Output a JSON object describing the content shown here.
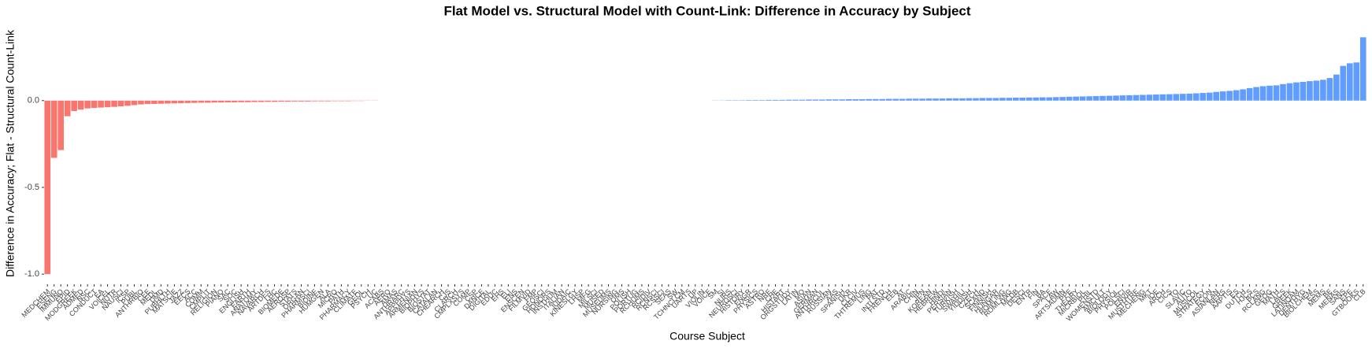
{
  "chart_data": {
    "type": "bar",
    "title": "Flat Model vs. Structural Model with Count-Link: Difference in Accuracy by Subject",
    "x_label": "Course Subject",
    "y_label": "Difference in Accuracy; Flat - Structural Count-Link",
    "negative_color": "#F8766D",
    "positive_color": "#619CFF",
    "ylim": [
      -1.04,
      0.43
    ],
    "yticks": [
      {
        "value": -1.0,
        "label": "-1.0"
      },
      -0.5,
      {
        "value": 0,
        "label": "0.0"
      }
    ],
    "grid": false,
    "categories": [
      "MEDCHEM",
      "ESENG",
      "IMMUNO",
      "EPID",
      "MODGREEK",
      "ADMED",
      "NSC",
      "CONDUCT",
      "EA",
      "VOICEL",
      "NUTR",
      "NAUSCI",
      "ICSP",
      "PUBL",
      "ANTHRBIO",
      "CEE",
      "MEDL",
      "DMD",
      "PUBHLTH",
      "MATSCIE",
      "JAZZ",
      "EECS",
      "ACC",
      "COMM",
      "CMPLIT",
      "RELIGION",
      "PIANO",
      "SAC",
      "SOC",
      "ENGLISH",
      "EARTH",
      "ANATOMY",
      "NAVARCH",
      "ARTDES",
      "LHC",
      "BIOMEDE",
      "AEROSP",
      "STATS",
      "ORGAN",
      "PHARMSCI",
      "BIOINF",
      "HUMGEN",
      "ALA",
      "MICRO",
      "PATH",
      "PHARMACY",
      "CLIMATE",
      "GEOL",
      "PSYCH",
      "UC",
      "ACABS",
      "AERO",
      "AMAS",
      "ANTHRARC",
      "APPPHYS",
      "ARMENIAN",
      "BIOPHYS",
      "BIOSTAT",
      "CATALAN",
      "CHEARCH",
      "CJS",
      "CLARCH",
      "CMPLXSYS",
      "COMP",
      "CSP",
      "DANCE",
      "DIGITAL",
      "EDUC",
      "EHS",
      "ELI",
      "ENS",
      "ENSCEN",
      "FILMVID",
      "FMP",
      "GEOSCI",
      "HONORS",
      "INSTHUM",
      "ITALIAN",
      "JUDAIC",
      "KINESLGY",
      "LHSP",
      "MFG",
      "MILSCI",
      "MUSED",
      "MUSEUMS",
      "NURSING",
      "OMS",
      "POLISH",
      "PORTUG",
      "RCHUMS",
      "RCIDIV",
      "RCNSCI",
      "RCSSCI",
      "SEAS",
      "SW",
      "TCHNCLCM",
      "UARTS",
      "UP",
      "VIOLIN",
      "VOICE",
      "SM",
      "SI",
      "NURS",
      "NEUROSCI",
      "HISTORY",
      "ENGR",
      "PHYSICS",
      "ASTRO",
      "NRE",
      "CHE",
      "HISTART",
      "ORGSTUDY",
      "LATIN",
      "MO",
      "ASIAN",
      "GERMAN",
      "ANTHRCUL",
      "RUSSIAN",
      "AAS",
      "SPANISH",
      "UKR",
      "CLCIV",
      "THTREMUS",
      "LING",
      "PAT",
      "INTLSTD",
      "FRENCH",
      "EEB",
      "AT",
      "ARABIC",
      "CHIN",
      "JPN",
      "KOREAN",
      "HEBREW",
      "HINDI",
      "PERSIAN",
      "TURKISH",
      "SWAHILI",
      "YIDDISH",
      "CZECH",
      "SCAND",
      "FINNISH",
      "HUNGAR",
      "ROMLING",
      "ROMLANG",
      "MCDB",
      "DESCI",
      "ENTR",
      "FIN",
      "BA",
      "SPACE",
      "LAW",
      "ARTSADMN",
      "PPE",
      "THEORY",
      "MICRBIOL",
      "PHIL",
      "WOMENSTD",
      "AMCULT",
      "BIOLOGY",
      "PHYSIOL",
      "POLSCI",
      "ENVIR",
      "MUSTHTRE",
      "MECHENG",
      "MKT",
      "IOE",
      "ARCH",
      "CICS",
      "TO",
      "SLAVIC",
      "AUTO",
      "MUSICOL",
      "STRATEGY",
      "ECON",
      "ASIANLAN",
      "NERS",
      "AAPTIS",
      "ES",
      "DUTCH",
      "HJCS",
      "BCS",
      "RCLANG",
      "GEOG",
      "MATH",
      "LACS",
      "GREEK",
      "LATINOAM",
      "DENTHYG",
      "BIOLCHEM",
      "ESS",
      "MEMS",
      "BE",
      "MENAS",
      "SANS",
      "EPE",
      "GTBOOKS",
      "CLB"
    ],
    "values": [
      -1.0,
      -0.33,
      -0.285,
      -0.09,
      -0.06,
      -0.052,
      -0.045,
      -0.042,
      -0.04,
      -0.038,
      -0.036,
      -0.033,
      -0.03,
      -0.026,
      -0.022,
      -0.02,
      -0.019,
      -0.018,
      -0.017,
      -0.016,
      -0.015,
      -0.014,
      -0.013,
      -0.012,
      -0.012,
      -0.011,
      -0.011,
      -0.01,
      -0.01,
      -0.009,
      -0.009,
      -0.008,
      -0.008,
      -0.007,
      -0.007,
      -0.006,
      -0.006,
      -0.005,
      -0.005,
      -0.005,
      -0.004,
      -0.004,
      -0.004,
      -0.003,
      -0.003,
      -0.003,
      -0.002,
      -0.002,
      -0.001,
      -0.001,
      0,
      0,
      0,
      0,
      0,
      0,
      0,
      0,
      0,
      0,
      0,
      0,
      0,
      0,
      0,
      0,
      0,
      0,
      0,
      0,
      0,
      0,
      0,
      0,
      0,
      0,
      0,
      0,
      0,
      0,
      0,
      0,
      0,
      0,
      0,
      0,
      0,
      0,
      0,
      0,
      0,
      0,
      0,
      0,
      0,
      0,
      0,
      0,
      0,
      0,
      0.001,
      0.001,
      0.002,
      0.002,
      0.002,
      0.003,
      0.003,
      0.003,
      0.004,
      0.004,
      0.004,
      0.005,
      0.005,
      0.005,
      0.006,
      0.006,
      0.006,
      0.007,
      0.007,
      0.007,
      0.008,
      0.008,
      0.008,
      0.009,
      0.009,
      0.009,
      0.01,
      0.01,
      0.01,
      0.011,
      0.011,
      0.011,
      0.012,
      0.012,
      0.012,
      0.013,
      0.013,
      0.013,
      0.014,
      0.014,
      0.015,
      0.015,
      0.015,
      0.016,
      0.016,
      0.017,
      0.017,
      0.018,
      0.018,
      0.019,
      0.019,
      0.02,
      0.021,
      0.022,
      0.023,
      0.024,
      0.025,
      0.026,
      0.027,
      0.028,
      0.029,
      0.03,
      0.031,
      0.032,
      0.033,
      0.034,
      0.035,
      0.036,
      0.037,
      0.038,
      0.039,
      0.04,
      0.042,
      0.044,
      0.046,
      0.05,
      0.053,
      0.056,
      0.06,
      0.065,
      0.072,
      0.078,
      0.083,
      0.086,
      0.088,
      0.095,
      0.1,
      0.105,
      0.108,
      0.112,
      0.115,
      0.12,
      0.13,
      0.15,
      0.2,
      0.215,
      0.22,
      0.365
    ]
  }
}
